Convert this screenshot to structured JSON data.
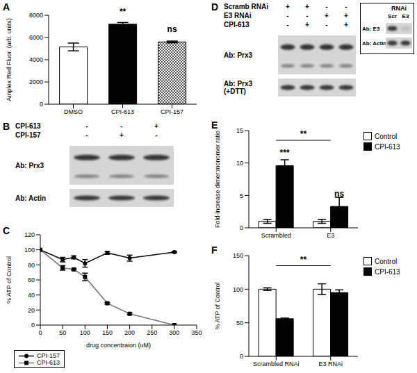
{
  "chart_data": [
    {
      "panel": "A",
      "type": "bar",
      "categories": [
        "DMSO",
        "CPI-613",
        "CPI-157"
      ],
      "values": [
        5150,
        7200,
        5600
      ],
      "errors": [
        350,
        150,
        80
      ],
      "colors": [
        "#ffffff",
        "#000000",
        "#555555"
      ],
      "y_label": "Amplex Red Fluor. (arb. units)",
      "ylim": [
        0,
        8000
      ],
      "yticks": [
        0,
        2000,
        4000,
        6000,
        8000
      ],
      "annotations": [
        {
          "text": "**",
          "category": "CPI-613"
        },
        {
          "text": "ns",
          "category": "CPI-157"
        }
      ]
    },
    {
      "panel": "C",
      "type": "line",
      "x": [
        0,
        50,
        75,
        100,
        150,
        200,
        300
      ],
      "xlim": [
        0,
        350
      ],
      "xticks": [
        0,
        50,
        100,
        150,
        200,
        250,
        300,
        350
      ],
      "ylim": [
        0,
        120
      ],
      "yticks": [
        0,
        20,
        40,
        60,
        80,
        100,
        120
      ],
      "x_label": "drug concentraion (uM)",
      "y_label": "% ATP of Control",
      "legend": "bottom left",
      "series": [
        {
          "name": "CPI-157",
          "color": "#000000",
          "marker": "circle",
          "values": [
            100,
            87,
            90,
            82,
            96,
            89,
            97
          ],
          "errors": [
            0,
            3,
            2,
            5,
            2,
            4,
            1
          ]
        },
        {
          "name": "CPI-613",
          "color": "#777777",
          "marker": "square",
          "values": [
            100,
            76,
            74,
            64,
            29,
            15,
            0
          ],
          "errors": [
            0,
            3,
            1,
            5,
            1,
            1,
            0
          ]
        }
      ]
    },
    {
      "panel": "E",
      "type": "bar",
      "categories": [
        "Scrambled",
        "E3"
      ],
      "series": [
        {
          "name": "Control",
          "color": "#ffffff",
          "values": [
            1,
            1
          ],
          "errors": [
            0.3,
            0.3
          ]
        },
        {
          "name": "CPI-613",
          "color": "#000000",
          "values": [
            9.6,
            3.3
          ],
          "errors": [
            0.9,
            1.4
          ]
        }
      ],
      "y_label": "Fold-increase dimer:monomer ratio",
      "ylim": [
        0,
        15
      ],
      "yticks": [
        0,
        5,
        10,
        15
      ],
      "legend": "top right",
      "annotations": [
        {
          "text": "***",
          "category": "Scrambled",
          "series": "CPI-613"
        },
        {
          "text": "**",
          "between": [
            "Scrambled",
            "E3"
          ]
        },
        {
          "text": "ns",
          "category": "E3",
          "series": "CPI-613"
        }
      ]
    },
    {
      "panel": "F",
      "type": "bar",
      "categories": [
        "Scrambled RNAi",
        "E3 RNAi"
      ],
      "series": [
        {
          "name": "Control",
          "color": "#ffffff",
          "values": [
            100,
            100
          ],
          "errors": [
            2,
            8
          ]
        },
        {
          "name": "CPI-613",
          "color": "#000000",
          "values": [
            56,
            95
          ],
          "errors": [
            1,
            4
          ]
        }
      ],
      "y_label": "% ATP of Control",
      "ylim": [
        0,
        150
      ],
      "yticks": [
        0,
        50,
        100,
        150
      ],
      "legend": "top right",
      "annotations": [
        {
          "text": "**",
          "between": [
            "Scrambled RNAi",
            "E3 RNAi"
          ]
        }
      ]
    }
  ],
  "blots": [
    {
      "panel": "B",
      "conditions": [
        {
          "label": "CPI-613",
          "signs": [
            "-",
            "-",
            "+"
          ]
        },
        {
          "label": "CPI-157",
          "signs": [
            "-",
            "+",
            "-"
          ]
        }
      ],
      "antibodies": [
        "Ab: Prx3",
        "Ab: Actin"
      ]
    },
    {
      "panel": "D",
      "conditions": [
        {
          "label": "Scramb RNAi",
          "signs": [
            "+",
            "+",
            "-",
            "-"
          ]
        },
        {
          "label": "E3 RNAi",
          "signs": [
            "-",
            "-",
            "+",
            "+"
          ]
        },
        {
          "label": "CPI-613",
          "signs": [
            "-",
            "+",
            "-",
            "+"
          ]
        }
      ],
      "antibodies": [
        "Ab: Prx3",
        "Ab: Prx3 (+DTT)"
      ],
      "inset": {
        "title": "RNAi",
        "lanes": [
          "Scr",
          "E3"
        ],
        "antibodies": [
          "Ab: E3",
          "Ab: Actin"
        ]
      }
    }
  ]
}
